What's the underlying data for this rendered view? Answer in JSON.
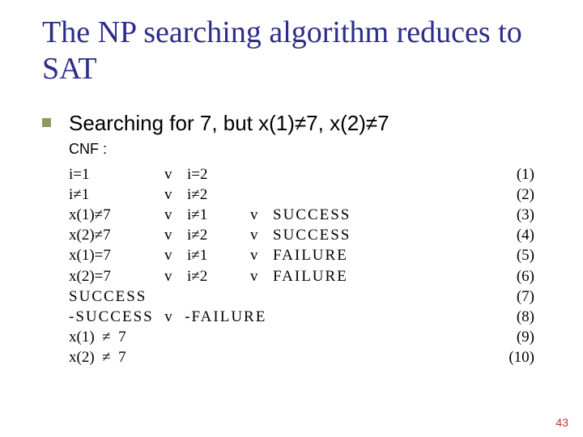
{
  "colors": {
    "title": "#2c2c8a",
    "bullet": "#8a9b5c",
    "body": "#000000",
    "pagenum": "#c03028"
  },
  "title": "The NP searching algorithm reduces to SAT",
  "bullet_text": "Searching for 7, but x(1)≠7, x(2)≠7",
  "cnf_label": "CNF :",
  "rows": [
    {
      "c1": "i=1",
      "c2": "v",
      "c3": "i=2",
      "c4": "",
      "c5": "",
      "num": "(1)"
    },
    {
      "c1": "i≠1",
      "c2": "v",
      "c3": "i≠2",
      "c4": "",
      "c5": "",
      "num": "(2)"
    },
    {
      "c1": "x(1)≠7",
      "c2": "v",
      "c3": "i≠1",
      "c4": "v",
      "c5": "SUCCESS",
      "num": "(3)"
    },
    {
      "c1": "x(2)≠7",
      "c2": "v",
      "c3": "i≠2",
      "c4": "v",
      "c5": "SUCCESS",
      "num": "(4)"
    },
    {
      "c1": "x(1)=7",
      "c2": "v",
      "c3": "i≠1",
      "c4": "v",
      "c5": "FAILURE",
      "num": "(5)"
    },
    {
      "c1": "x(2)=7",
      "c2": "v",
      "c3": "i≠2",
      "c4": "v",
      "c5": "FAILURE",
      "num": "(6)"
    },
    {
      "c1": "SUCCESS",
      "c2": "",
      "c3": "",
      "c4": "",
      "c5": "",
      "num": "(7)",
      "wide1": true
    },
    {
      "c1": "-SUCCESS  v  -FAILURE",
      "span": true,
      "num": "(8)",
      "wide1": true
    },
    {
      "c1": "x(1)  ≠  7",
      "span": true,
      "num": "(9)"
    },
    {
      "c1": "x(2)  ≠  7",
      "span": true,
      "num": "(10)"
    }
  ],
  "page_number": "43"
}
